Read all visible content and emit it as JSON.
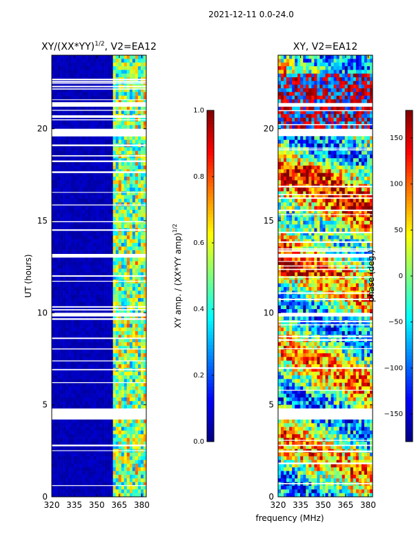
{
  "figure": {
    "suptitle": "2021-12-11 0.0-24.0",
    "xlabel": "frequency (MHz)"
  },
  "chart_data": [
    {
      "type": "heatmap",
      "title_main": "XY/(XX*YY)",
      "title_sup": "1/2",
      "title_tail": ", V2=EA12",
      "xlabel": "",
      "ylabel": "UT (hours)",
      "xlim": [
        320,
        383
      ],
      "ylim": [
        0,
        24
      ],
      "xticks": [
        320,
        335,
        350,
        365,
        380
      ],
      "yticks": [
        0,
        5,
        10,
        15,
        20
      ],
      "colorbar": {
        "label_main": "XY amp. / (XX*YY amp)",
        "label_sup": "1/2",
        "range": [
          0.0,
          1.0
        ],
        "ticks": [
          "0.0",
          "0.2",
          "0.4",
          "0.6",
          "0.8",
          "1.0"
        ],
        "tick_values": [
          0.0,
          0.2,
          0.4,
          0.6,
          0.8,
          1.0
        ],
        "colormap": "jet"
      },
      "data_gaps_hours": [
        [
          4.2,
          4.8
        ],
        [
          19.7,
          19.9
        ],
        [
          21.2,
          21.4
        ],
        [
          13.0,
          13.1
        ],
        [
          9.8,
          9.9
        ]
      ],
      "active_band_mhz": [
        360,
        383
      ]
    },
    {
      "type": "heatmap",
      "title_main": "XY, V2=EA12",
      "title_sup": "",
      "title_tail": "",
      "xlabel": "frequency (MHz)",
      "ylabel": "",
      "xlim": [
        320,
        383
      ],
      "ylim": [
        0,
        24
      ],
      "xticks": [
        320,
        335,
        350,
        365,
        380
      ],
      "yticks": [
        0,
        5,
        10,
        15,
        20
      ],
      "colorbar": {
        "label_main": "phase (deg.)",
        "label_sup": "",
        "range": [
          -180,
          180
        ],
        "ticks": [
          "−150",
          "−100",
          "−50",
          "0",
          "50",
          "100",
          "150"
        ],
        "tick_values": [
          -150,
          -100,
          -50,
          0,
          50,
          100,
          150
        ],
        "colormap": "jet"
      },
      "data_gaps_hours": [
        [
          4.2,
          4.8
        ],
        [
          19.7,
          19.9
        ],
        [
          21.2,
          21.4
        ],
        [
          13.0,
          13.1
        ],
        [
          9.8,
          9.9
        ]
      ]
    }
  ]
}
